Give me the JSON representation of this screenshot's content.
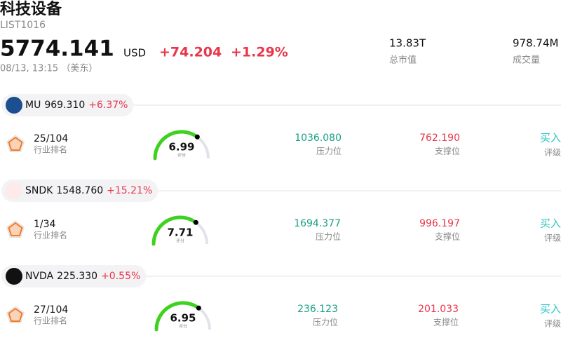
{
  "header": {
    "title": "科技设备",
    "code": "LIST1016",
    "price": "5774.141",
    "currency": "USD",
    "change": "+74.204",
    "change_pct": "+1.29%",
    "time": "08/13, 13:15 （美东）",
    "stats": [
      {
        "value": "13.83T",
        "label": "总市值"
      },
      {
        "value": "978.74M",
        "label": "成交量"
      }
    ]
  },
  "stocks": [
    {
      "ticker": "MU",
      "price": "969.310",
      "change": "+6.37%",
      "rank": "25/104",
      "rank_label": "行业排名",
      "score": "6.99",
      "score_label": "评分",
      "resistance": "1036.080",
      "resistance_label": "压力位",
      "support": "762.190",
      "support_label": "支撑位",
      "rating": "买入",
      "rating_label": "评级"
    },
    {
      "ticker": "SNDK",
      "price": "1548.760",
      "change": "+15.21%",
      "rank": "1/34",
      "rank_label": "行业排名",
      "score": "7.71",
      "score_label": "评分",
      "resistance": "1694.377",
      "resistance_label": "压力位",
      "support": "996.197",
      "support_label": "支撑位",
      "rating": "买入",
      "rating_label": "评级"
    },
    {
      "ticker": "NVDA",
      "price": "225.330",
      "change": "+0.55%",
      "rank": "27/104",
      "rank_label": "行业排名",
      "score": "6.95",
      "score_label": "评分",
      "resistance": "236.123",
      "resistance_label": "压力位",
      "support": "201.033",
      "support_label": "支撑位",
      "rating": "买入",
      "rating_label": "评级"
    }
  ]
}
